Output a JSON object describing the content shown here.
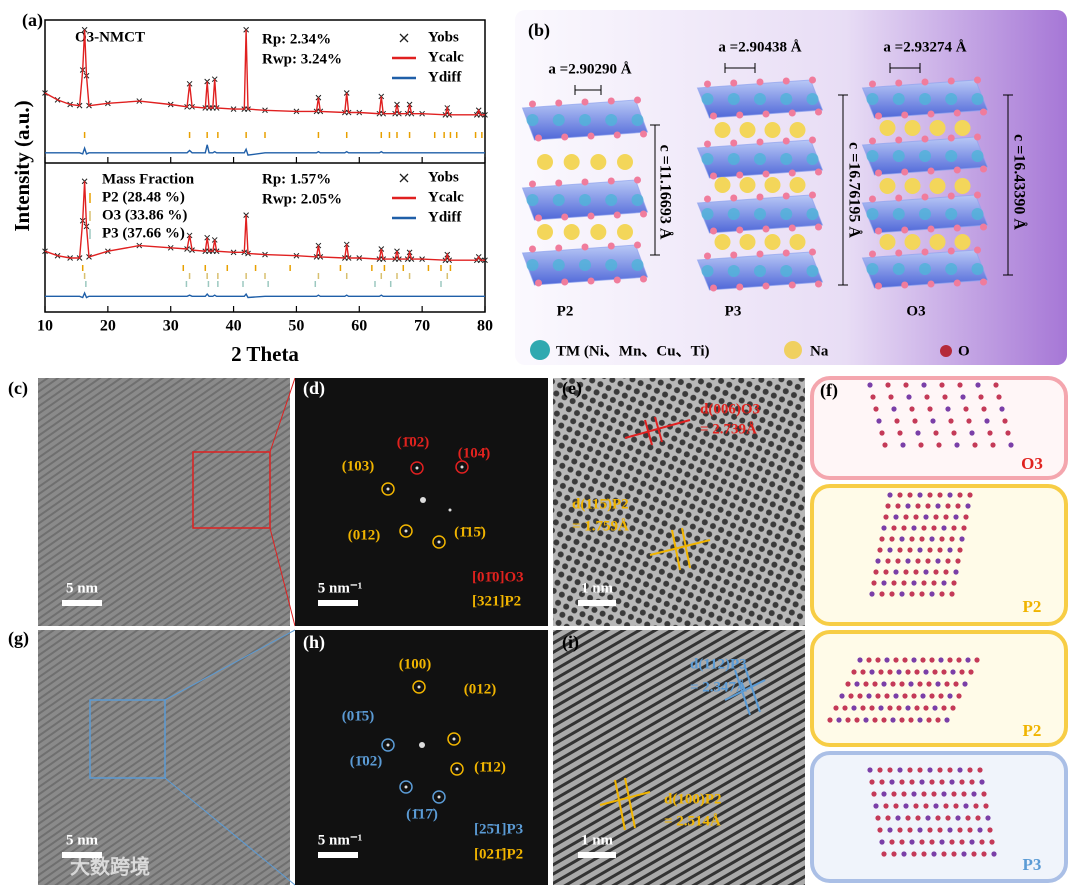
{
  "chart_data": [
    {
      "type": "line",
      "ylim": [
        -20,
        100
      ],
      "x": [
        10,
        12,
        14,
        15.5,
        16,
        16.3,
        16.6,
        17,
        20,
        25,
        30,
        32.6,
        33,
        33.4,
        35.5,
        35.8,
        36.1,
        36.7,
        37,
        37.3,
        40,
        41.7,
        42,
        42.3,
        45,
        50,
        53.2,
        53.5,
        53.8,
        57.7,
        58,
        58.3,
        60,
        63.2,
        63.5,
        63.8,
        65.7,
        66,
        66.3,
        67.7,
        68,
        68.3,
        70,
        73.7,
        74,
        74.3,
        78.7,
        79,
        79.3,
        80
      ],
      "annotations": [
        "O3-NMCT",
        "Rp: 2.34%",
        "Rwp: 3.24%"
      ],
      "series": [
        {
          "name": "Yobs",
          "color": "#222222",
          "marker": "x",
          "values": [
            40,
            34,
            30,
            29,
            60,
            95,
            55,
            29,
            31,
            33,
            30,
            28,
            48,
            28,
            27,
            50,
            27,
            27,
            52,
            27,
            26,
            26,
            95,
            26,
            25,
            24,
            24,
            36,
            24,
            23,
            40,
            23,
            23,
            22,
            37,
            22,
            22,
            30,
            22,
            22,
            30,
            22,
            22,
            21,
            27,
            21,
            21,
            25,
            21,
            21
          ]
        },
        {
          "name": "Ycalc",
          "color": "#e02020",
          "values": [
            40,
            34,
            30,
            29,
            60,
            95,
            55,
            29,
            31,
            33,
            30,
            28,
            48,
            28,
            27,
            50,
            27,
            27,
            52,
            27,
            26,
            26,
            95,
            26,
            25,
            24,
            24,
            36,
            24,
            23,
            40,
            23,
            23,
            22,
            37,
            22,
            22,
            30,
            22,
            22,
            30,
            22,
            22,
            21,
            27,
            21,
            21,
            25,
            21,
            21
          ]
        },
        {
          "name": "Ydiff",
          "color": "#1f5fa8",
          "values": [
            -12,
            -12,
            -12,
            -12,
            -13,
            -8,
            -13,
            -12,
            -12,
            -12,
            -12,
            -12,
            -10,
            -12,
            -12,
            -5,
            -12,
            -12,
            -11,
            -12,
            -12,
            -12,
            -9,
            -14,
            -12,
            -12,
            -12,
            -11,
            -12,
            -12,
            -11,
            -12,
            -12,
            -12,
            -11,
            -12,
            -12,
            -12,
            -12,
            -12,
            -12,
            -12,
            -12,
            -12,
            -12,
            -12,
            -12,
            -12,
            -12,
            -12
          ]
        }
      ],
      "reflections": [
        {
          "color": "#e8a000",
          "x": [
            16.3,
            33,
            35.8,
            37.5,
            42,
            45,
            53.5,
            58,
            63.5,
            64.8,
            66,
            68,
            72,
            73.5,
            74.5,
            75.5,
            78.5,
            79.5
          ]
        }
      ]
    },
    {
      "type": "line",
      "ylim": [
        -25,
        100
      ],
      "xlim": [
        10,
        80
      ],
      "xticks": [
        10,
        20,
        30,
        40,
        50,
        60,
        70,
        80
      ],
      "xlabel": "2 Theta",
      "ylabel": "Intensity (a.u.)",
      "x": [
        10,
        12,
        14,
        15.5,
        16,
        16.3,
        16.6,
        17,
        20,
        25,
        30,
        32.6,
        33,
        33.4,
        35.5,
        35.8,
        36.1,
        36.7,
        37,
        37.3,
        40,
        41.7,
        42,
        42.3,
        45,
        50,
        53.2,
        53.5,
        53.8,
        57.7,
        58,
        58.3,
        60,
        63.2,
        63.5,
        63.8,
        65.7,
        66,
        66.3,
        67.7,
        68,
        68.3,
        70,
        73.7,
        74,
        74.3,
        78.7,
        79,
        79.3,
        80
      ],
      "annotations": [
        "Mass Fraction",
        "Rp: 1.57%",
        "Rwp: 2.05%"
      ],
      "series": [
        {
          "name": "Yobs",
          "color": "#222222",
          "marker": "x",
          "values": [
            28,
            24,
            22,
            22,
            55,
            90,
            50,
            23,
            28,
            33,
            31,
            30,
            42,
            29,
            28,
            40,
            28,
            28,
            38,
            28,
            27,
            27,
            60,
            26,
            25,
            24,
            23,
            33,
            23,
            22,
            34,
            22,
            22,
            21,
            30,
            21,
            21,
            28,
            21,
            21,
            27,
            21,
            21,
            20,
            25,
            20,
            20,
            23,
            20,
            20
          ]
        },
        {
          "name": "Ycalc",
          "color": "#e02020",
          "values": [
            28,
            24,
            22,
            22,
            55,
            90,
            50,
            23,
            28,
            33,
            31,
            30,
            42,
            29,
            28,
            40,
            28,
            28,
            38,
            28,
            27,
            27,
            60,
            26,
            25,
            24,
            23,
            33,
            23,
            22,
            34,
            22,
            22,
            21,
            30,
            21,
            21,
            28,
            21,
            21,
            27,
            21,
            21,
            20,
            25,
            20,
            20,
            23,
            20,
            20
          ]
        },
        {
          "name": "Ydiff",
          "color": "#1f5fa8",
          "values": [
            -12,
            -12,
            -12,
            -12,
            -13,
            -9,
            -13,
            -12,
            -12,
            -12,
            -12,
            -12,
            -11,
            -12,
            -12,
            -10,
            -12,
            -12,
            -11,
            -12,
            -12,
            -12,
            -10,
            -13,
            -12,
            -12,
            -12,
            -11,
            -12,
            -12,
            -11,
            -12,
            -12,
            -12,
            -11,
            -12,
            -12,
            -12,
            -12,
            -12,
            -12,
            -12,
            -12,
            -12,
            -12,
            -12,
            -12,
            -12,
            -12,
            -12
          ]
        }
      ],
      "reflections": [
        {
          "name": "P2 (28.48 %)",
          "color": "#e8a000",
          "x": [
            16,
            32,
            35.5,
            39,
            43.5,
            49,
            57,
            62,
            64,
            67,
            71,
            73,
            74.5
          ]
        },
        {
          "name": "O3 (33.86 %)",
          "color": "#d8c070",
          "x": [
            16.3,
            33,
            35.8,
            37.5,
            42,
            45,
            53.5,
            58,
            63.5,
            66,
            68,
            74
          ]
        },
        {
          "name": "P3 (37.66 %)",
          "color": "#9cc8c0",
          "x": [
            16.5,
            32.5,
            36,
            37.5,
            41.5,
            45.5,
            53,
            62.5,
            65,
            73
          ]
        }
      ]
    }
  ],
  "panel_labels": [
    "(a)",
    "(b)",
    "(c)",
    "(d)",
    "(e)",
    "(f)",
    "(g)",
    "(h)",
    "(i)"
  ],
  "structures": {
    "phases": [
      {
        "name": "P2",
        "a": "a =2.90290 Å",
        "c": "c =11.16693 Å"
      },
      {
        "name": "P3",
        "a": "a =2.90438 Å",
        "c": "c =16.76195 Å"
      },
      {
        "name": "O3",
        "a": "a =2.93274 Å",
        "c": "c =16.43390 Å"
      }
    ],
    "legend": [
      "TM (Ni、Mn、Cu、Ti)",
      "Na",
      "O"
    ]
  },
  "tem": {
    "c": {
      "scale": "5 nm"
    },
    "d": {
      "scale": "5 nm⁻¹",
      "spots": [
        "(1̄02)",
        "(104̄)",
        "(103)",
        "(012)",
        "(1̄15̄)"
      ],
      "zones": [
        "[01̄0]O3",
        "[321]P2"
      ]
    },
    "e": {
      "scale": "1 nm",
      "labels": [
        "d(006)O3",
        "= 2.739Å",
        "d(115̄)P2",
        "= 1.759Å"
      ]
    },
    "g": {
      "scale": "5 nm"
    },
    "h": {
      "scale": "5 nm⁻¹",
      "spots": [
        "(100)",
        "(012)",
        "(01̄5)",
        "(1̄12)",
        "(1̄02)",
        "(1̄17̄)"
      ],
      "zones": [
        "[25̄1]P3",
        "[021̄]P2"
      ]
    },
    "i": {
      "scale": "1 nm",
      "labels": [
        "d(112)P3",
        "= 2.347Å",
        "d(100)P2",
        "= 2.514Å"
      ]
    }
  },
  "models": [
    "O3",
    "P2",
    "P2",
    "P3"
  ],
  "watermark": "大数跨境"
}
